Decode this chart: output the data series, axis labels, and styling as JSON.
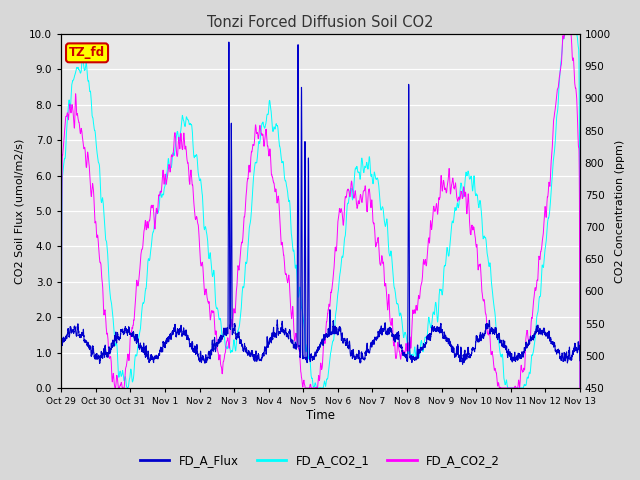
{
  "title": "Tonzi Forced Diffusion Soil CO2",
  "xlabel": "Time",
  "ylabel_left": "CO2 Soil Flux (umol/m2/s)",
  "ylabel_right": "CO2 Concentration (ppm)",
  "ylim_left": [
    0.0,
    10.0
  ],
  "ylim_right": [
    450,
    1000
  ],
  "annotation": "TZ_fd",
  "annotation_bg": "#ffff00",
  "annotation_border": "#cc0000",
  "legend_entries": [
    "FD_A_Flux",
    "FD_A_CO2_1",
    "FD_A_CO2_2"
  ],
  "flux_color": "#0000CC",
  "co2_1_color": "#00FFFF",
  "co2_2_color": "#FF00FF",
  "fig_bg_color": "#d8d8d8",
  "plot_bg_color": "#e8e8e8",
  "grid_color": "#ffffff",
  "xtick_labels": [
    "Oct 29",
    "Oct 30",
    "Oct 31",
    "Nov 1",
    "Nov 2",
    "Nov 3",
    "Nov 4",
    "Nov 5",
    "Nov 6",
    "Nov 7",
    "Nov 8",
    "Nov 9",
    "Nov 10",
    "Nov 11",
    "Nov 12",
    "Nov 13"
  ],
  "yticks_left": [
    0.0,
    1.0,
    2.0,
    3.0,
    4.0,
    5.0,
    6.0,
    7.0,
    8.0,
    9.0,
    10.0
  ],
  "yticks_right": [
    450,
    500,
    550,
    600,
    650,
    700,
    750,
    800,
    850,
    900,
    950,
    1000
  ]
}
